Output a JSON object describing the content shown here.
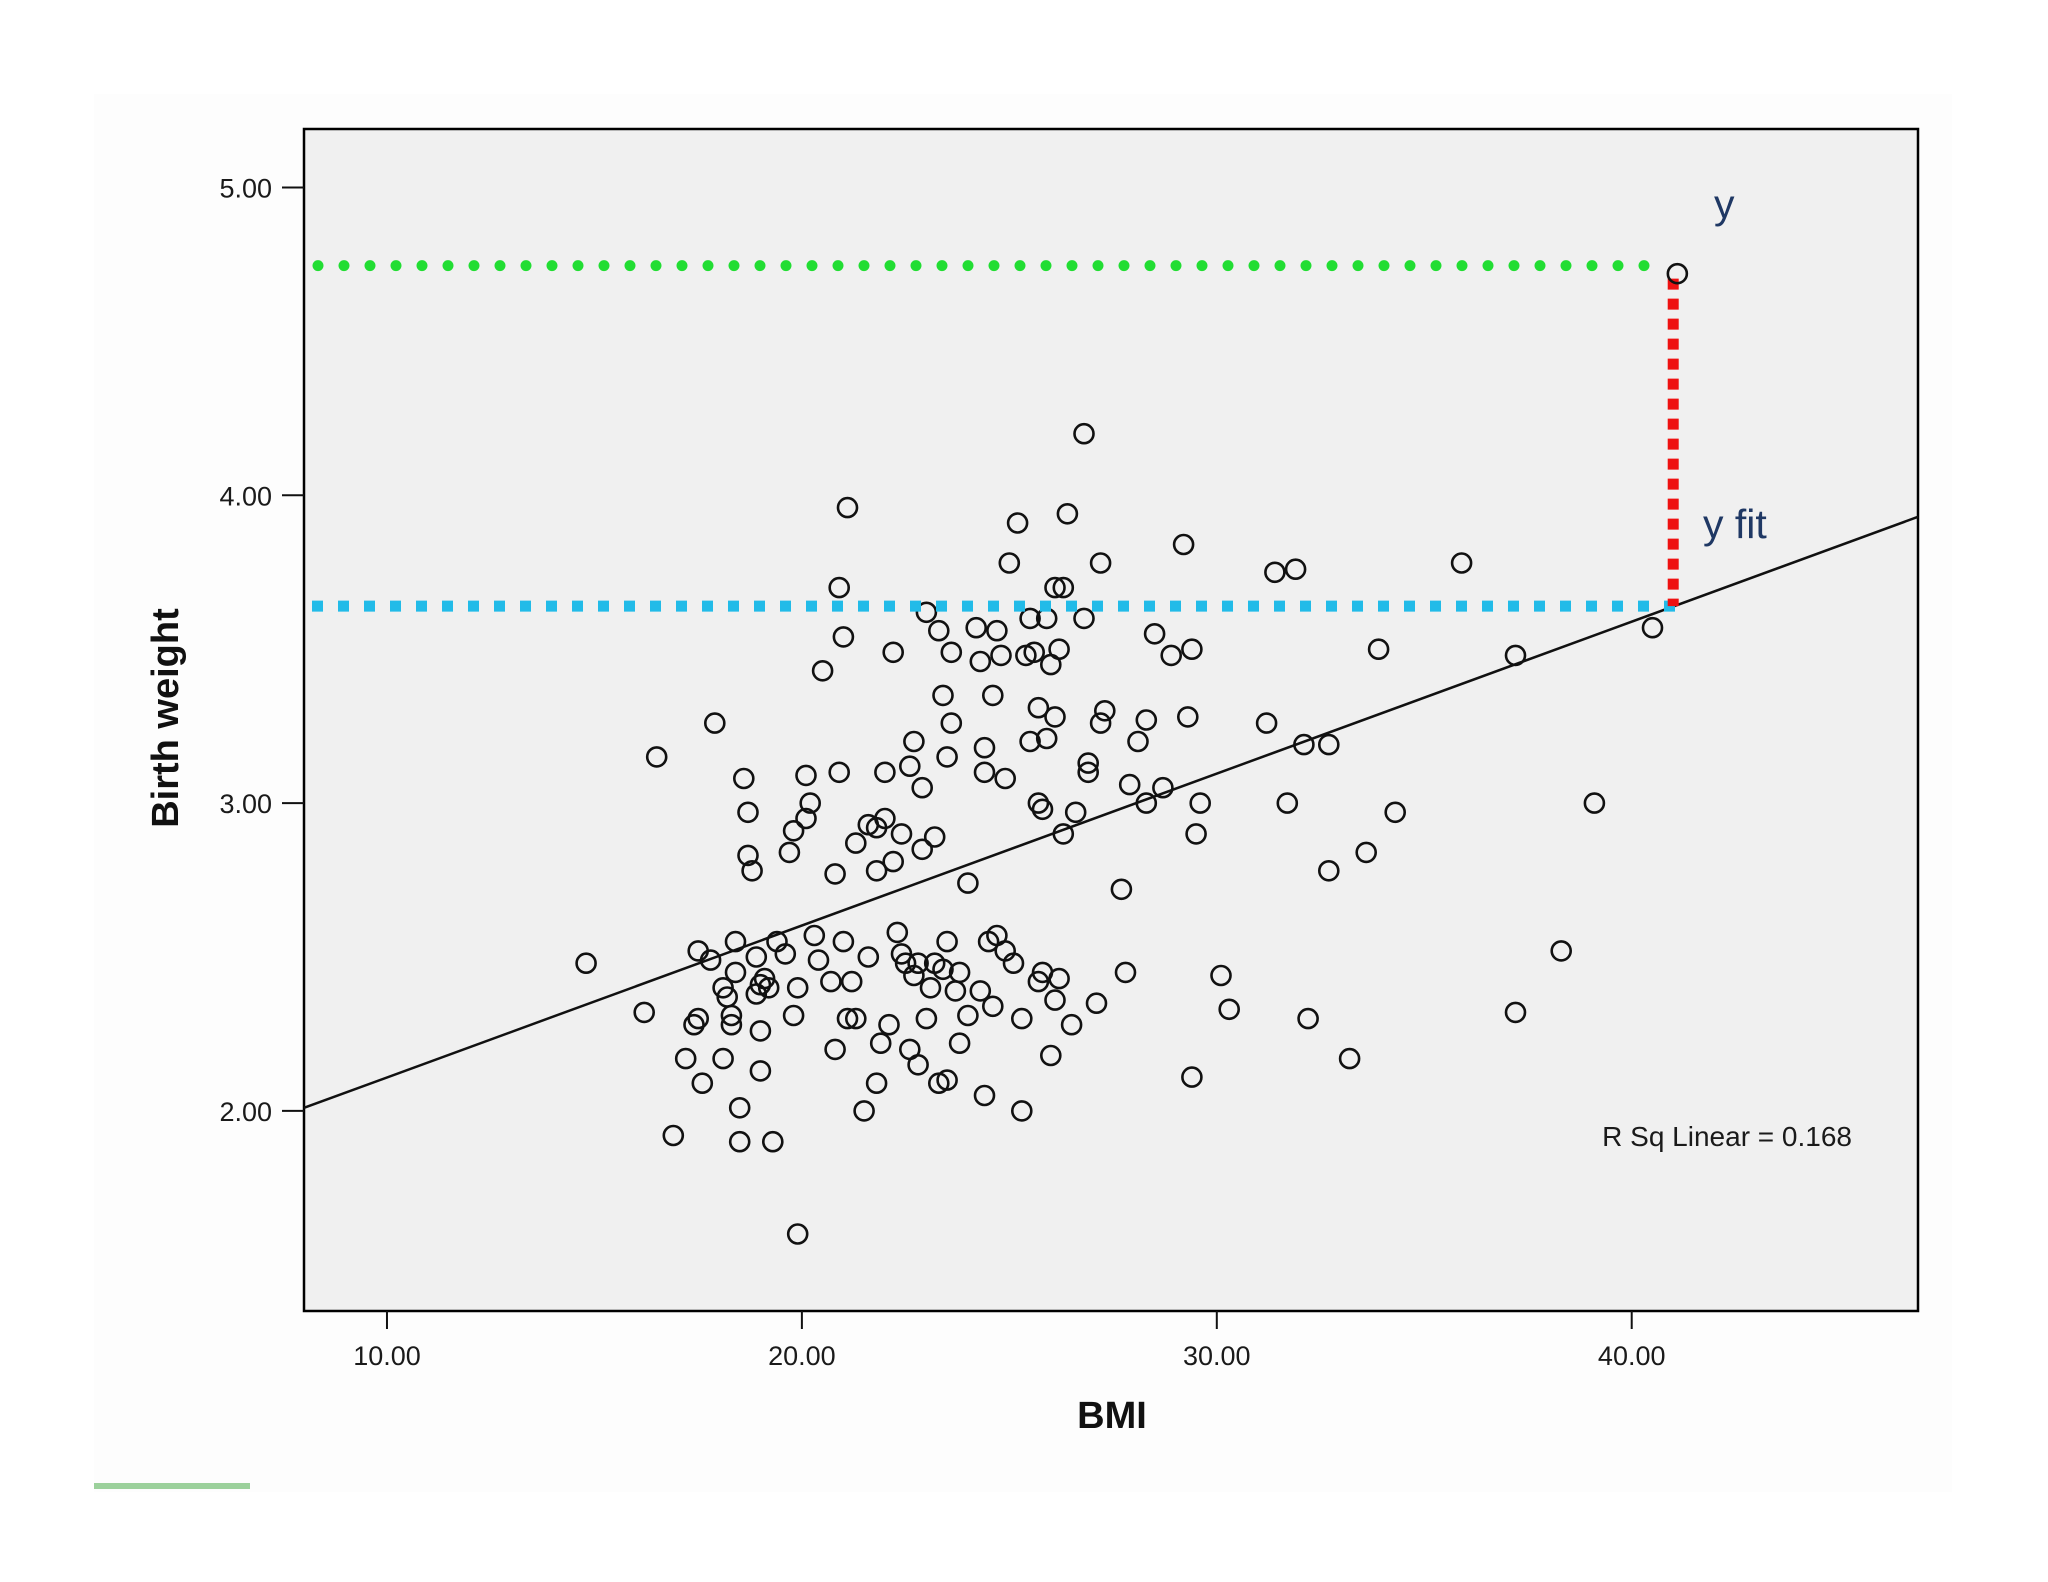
{
  "chart_data": {
    "type": "scatter",
    "xlabel": "BMI",
    "ylabel": "Birth weight",
    "xlim": [
      8.0,
      46.9
    ],
    "ylim": [
      1.35,
      5.19
    ],
    "x_ticks": [
      "10.00",
      "20.00",
      "30.00",
      "40.00"
    ],
    "y_ticks": [
      "2.00",
      "3.00",
      "4.00",
      "5.00"
    ],
    "grid": false,
    "fit_line": {
      "kind": "linear",
      "x_start": 8.0,
      "y_start": 2.01,
      "x_end": 46.9,
      "y_end": 3.93
    },
    "r_squared_label": "R Sq Linear = 0.168",
    "annotations": {
      "observed_label": "y",
      "fitted_label": "y fit",
      "observed_point": {
        "x": 41.1,
        "y": 4.72
      },
      "fitted_point": {
        "x": 41.0,
        "y": 3.64
      },
      "observed_line_color": "#22dd33",
      "fitted_line_color": "#22bbe8",
      "residual_line_color": "#ee1111"
    },
    "points": [
      [
        14.8,
        2.48
      ],
      [
        16.2,
        2.32
      ],
      [
        16.5,
        3.15
      ],
      [
        16.9,
        1.92
      ],
      [
        17.2,
        2.17
      ],
      [
        17.4,
        2.28
      ],
      [
        17.5,
        2.52
      ],
      [
        17.5,
        2.3
      ],
      [
        17.6,
        2.09
      ],
      [
        17.8,
        2.49
      ],
      [
        17.9,
        3.26
      ],
      [
        18.1,
        2.4
      ],
      [
        18.1,
        2.17
      ],
      [
        18.2,
        2.37
      ],
      [
        18.3,
        2.28
      ],
      [
        18.3,
        2.31
      ],
      [
        18.4,
        2.55
      ],
      [
        18.4,
        2.45
      ],
      [
        18.5,
        1.9
      ],
      [
        18.5,
        2.01
      ],
      [
        18.6,
        3.08
      ],
      [
        18.7,
        2.97
      ],
      [
        18.7,
        2.83
      ],
      [
        18.8,
        2.78
      ],
      [
        18.9,
        2.5
      ],
      [
        18.9,
        2.38
      ],
      [
        19.0,
        2.41
      ],
      [
        19.0,
        2.26
      ],
      [
        19.0,
        2.13
      ],
      [
        19.1,
        2.43
      ],
      [
        19.2,
        2.4
      ],
      [
        19.3,
        1.9
      ],
      [
        19.4,
        2.55
      ],
      [
        19.6,
        2.51
      ],
      [
        19.7,
        2.84
      ],
      [
        19.8,
        2.91
      ],
      [
        19.8,
        2.31
      ],
      [
        19.9,
        2.4
      ],
      [
        19.9,
        1.6
      ],
      [
        20.1,
        3.09
      ],
      [
        20.1,
        2.95
      ],
      [
        20.2,
        3.0
      ],
      [
        20.3,
        2.57
      ],
      [
        20.4,
        2.49
      ],
      [
        20.5,
        3.43
      ],
      [
        20.7,
        2.42
      ],
      [
        20.8,
        2.2
      ],
      [
        20.8,
        2.77
      ],
      [
        20.9,
        3.1
      ],
      [
        20.9,
        3.7
      ],
      [
        21.0,
        3.54
      ],
      [
        21.0,
        2.55
      ],
      [
        21.1,
        2.3
      ],
      [
        21.1,
        3.96
      ],
      [
        21.2,
        2.42
      ],
      [
        21.3,
        2.87
      ],
      [
        21.3,
        2.3
      ],
      [
        21.5,
        2.0
      ],
      [
        21.6,
        2.93
      ],
      [
        21.6,
        2.5
      ],
      [
        21.8,
        2.92
      ],
      [
        21.8,
        2.78
      ],
      [
        21.8,
        2.09
      ],
      [
        21.9,
        2.22
      ],
      [
        22.0,
        2.95
      ],
      [
        22.0,
        3.1
      ],
      [
        22.1,
        2.28
      ],
      [
        22.2,
        3.49
      ],
      [
        22.2,
        2.81
      ],
      [
        22.3,
        2.58
      ],
      [
        22.4,
        2.9
      ],
      [
        22.4,
        2.51
      ],
      [
        22.5,
        2.48
      ],
      [
        22.6,
        3.12
      ],
      [
        22.6,
        2.2
      ],
      [
        22.7,
        3.2
      ],
      [
        22.7,
        2.44
      ],
      [
        22.8,
        2.48
      ],
      [
        22.8,
        2.15
      ],
      [
        22.9,
        3.05
      ],
      [
        22.9,
        2.85
      ],
      [
        23.0,
        3.62
      ],
      [
        23.0,
        2.3
      ],
      [
        23.1,
        2.4
      ],
      [
        23.2,
        2.48
      ],
      [
        23.2,
        2.89
      ],
      [
        23.3,
        2.09
      ],
      [
        23.3,
        3.56
      ],
      [
        23.4,
        3.35
      ],
      [
        23.4,
        2.46
      ],
      [
        23.5,
        2.55
      ],
      [
        23.5,
        3.15
      ],
      [
        23.5,
        2.1
      ],
      [
        23.6,
        3.26
      ],
      [
        23.6,
        3.49
      ],
      [
        23.7,
        2.39
      ],
      [
        23.8,
        2.22
      ],
      [
        23.8,
        2.45
      ],
      [
        24.0,
        2.74
      ],
      [
        24.0,
        2.31
      ],
      [
        24.2,
        3.57
      ],
      [
        24.3,
        2.39
      ],
      [
        24.3,
        3.46
      ],
      [
        24.4,
        3.1
      ],
      [
        24.4,
        3.18
      ],
      [
        24.4,
        2.05
      ],
      [
        24.5,
        2.55
      ],
      [
        24.6,
        2.34
      ],
      [
        24.6,
        3.35
      ],
      [
        24.7,
        2.57
      ],
      [
        24.7,
        3.56
      ],
      [
        24.8,
        3.48
      ],
      [
        24.9,
        2.52
      ],
      [
        24.9,
        3.08
      ],
      [
        25.0,
        3.78
      ],
      [
        25.1,
        2.48
      ],
      [
        25.2,
        3.91
      ],
      [
        25.3,
        2.3
      ],
      [
        25.3,
        2.0
      ],
      [
        25.4,
        3.48
      ],
      [
        25.5,
        3.6
      ],
      [
        25.5,
        3.2
      ],
      [
        25.6,
        3.49
      ],
      [
        25.7,
        3.0
      ],
      [
        25.7,
        2.42
      ],
      [
        25.7,
        3.31
      ],
      [
        25.8,
        2.45
      ],
      [
        25.8,
        2.98
      ],
      [
        25.9,
        3.6
      ],
      [
        25.9,
        3.21
      ],
      [
        26.0,
        3.45
      ],
      [
        26.0,
        2.18
      ],
      [
        26.1,
        3.28
      ],
      [
        26.1,
        2.36
      ],
      [
        26.2,
        3.5
      ],
      [
        26.2,
        2.43
      ],
      [
        26.3,
        3.7
      ],
      [
        26.3,
        2.9
      ],
      [
        26.4,
        3.94
      ],
      [
        26.5,
        2.28
      ],
      [
        26.6,
        2.97
      ],
      [
        26.8,
        3.6
      ],
      [
        26.9,
        3.13
      ],
      [
        26.9,
        3.1
      ],
      [
        27.1,
        2.35
      ],
      [
        27.2,
        3.78
      ],
      [
        27.2,
        3.26
      ],
      [
        27.3,
        3.3
      ],
      [
        27.7,
        2.72
      ],
      [
        27.8,
        2.45
      ],
      [
        27.9,
        3.06
      ],
      [
        28.1,
        3.2
      ],
      [
        28.3,
        3.0
      ],
      [
        28.3,
        3.27
      ],
      [
        28.5,
        3.55
      ],
      [
        28.7,
        3.05
      ],
      [
        28.9,
        3.48
      ],
      [
        29.2,
        3.84
      ],
      [
        29.3,
        3.28
      ],
      [
        29.4,
        3.5
      ],
      [
        29.4,
        2.11
      ],
      [
        29.5,
        2.9
      ],
      [
        29.6,
        3.0
      ],
      [
        30.1,
        2.44
      ],
      [
        30.3,
        2.33
      ],
      [
        31.2,
        3.26
      ],
      [
        31.4,
        3.75
      ],
      [
        31.7,
        3.0
      ],
      [
        31.9,
        3.76
      ],
      [
        32.1,
        3.19
      ],
      [
        32.2,
        2.3
      ],
      [
        32.7,
        2.78
      ],
      [
        32.7,
        3.19
      ],
      [
        33.2,
        2.17
      ],
      [
        33.6,
        2.84
      ],
      [
        33.9,
        3.5
      ],
      [
        34.3,
        2.97
      ],
      [
        35.9,
        3.78
      ],
      [
        37.2,
        3.48
      ],
      [
        37.2,
        2.32
      ],
      [
        38.3,
        2.52
      ],
      [
        39.1,
        3.0
      ],
      [
        40.5,
        3.57
      ],
      [
        26.8,
        4.2
      ],
      [
        26.1,
        3.7
      ]
    ]
  }
}
